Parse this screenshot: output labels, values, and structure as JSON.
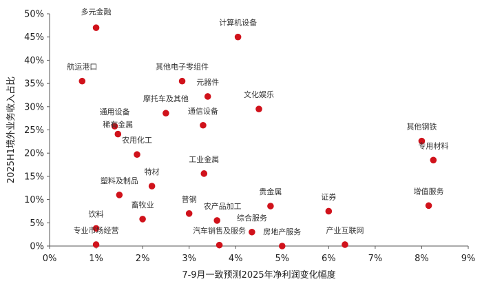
{
  "chart_data": {
    "type": "scatter",
    "title": "",
    "xlabel": "7-9月一致预测2025年净利润变化幅度",
    "ylabel": "2025H1境外业务收入占比",
    "xlim": [
      0,
      9
    ],
    "ylim": [
      0,
      50
    ],
    "x_ticks": [
      "0%",
      "1%",
      "2%",
      "3%",
      "4%",
      "5%",
      "6%",
      "7%",
      "8%",
      "9%"
    ],
    "y_ticks": [
      "0%",
      "5%",
      "10%",
      "15%",
      "20%",
      "25%",
      "30%",
      "35%",
      "40%",
      "45%",
      "50%"
    ],
    "grid": false,
    "legend": "none",
    "marker_color": "#d0121b",
    "points": [
      {
        "label": "多元金融",
        "x": 1.0,
        "y": 47.0
      },
      {
        "label": "计算机设备",
        "x": 4.05,
        "y": 45.0
      },
      {
        "label": "航运港口",
        "x": 0.7,
        "y": 35.5
      },
      {
        "label": "其他电子零组件",
        "x": 2.85,
        "y": 35.5
      },
      {
        "label": "元器件",
        "x": 3.4,
        "y": 32.2
      },
      {
        "label": "文化娱乐",
        "x": 4.5,
        "y": 29.5
      },
      {
        "label": "摩托车及其他",
        "x": 2.5,
        "y": 28.6
      },
      {
        "label": "通用设备",
        "x": 1.4,
        "y": 25.8
      },
      {
        "label": "稀有金属",
        "x": 1.47,
        "y": 24.1
      },
      {
        "label": "通信设备",
        "x": 3.3,
        "y": 26.0
      },
      {
        "label": "其他钢铁",
        "x": 8.0,
        "y": 22.6
      },
      {
        "label": "专用材料",
        "x": 8.25,
        "y": 18.5
      },
      {
        "label": "农用化工",
        "x": 1.88,
        "y": 19.7
      },
      {
        "label": "工业金属",
        "x": 3.32,
        "y": 15.6
      },
      {
        "label": "特材",
        "x": 2.2,
        "y": 12.9
      },
      {
        "label": "塑料及制品",
        "x": 1.5,
        "y": 11.0
      },
      {
        "label": "贵金属",
        "x": 4.75,
        "y": 8.6
      },
      {
        "label": "证券",
        "x": 6.0,
        "y": 7.5
      },
      {
        "label": "增值服务",
        "x": 8.15,
        "y": 8.7
      },
      {
        "label": "普钢",
        "x": 3.0,
        "y": 7.0
      },
      {
        "label": "农产品加工",
        "x": 3.6,
        "y": 5.5
      },
      {
        "label": "畜牧业",
        "x": 2.0,
        "y": 5.8
      },
      {
        "label": "饮料",
        "x": 1.0,
        "y": 3.8
      },
      {
        "label": "综合服务",
        "x": 4.35,
        "y": 3.0
      },
      {
        "label": "专业市场经营",
        "x": 1.0,
        "y": 0.3
      },
      {
        "label": "汽车销售及服务",
        "x": 3.65,
        "y": 0.2
      },
      {
        "label": "房地产服务",
        "x": 5.0,
        "y": 0.0
      },
      {
        "label": "产业互联网",
        "x": 6.35,
        "y": 0.3
      }
    ]
  }
}
